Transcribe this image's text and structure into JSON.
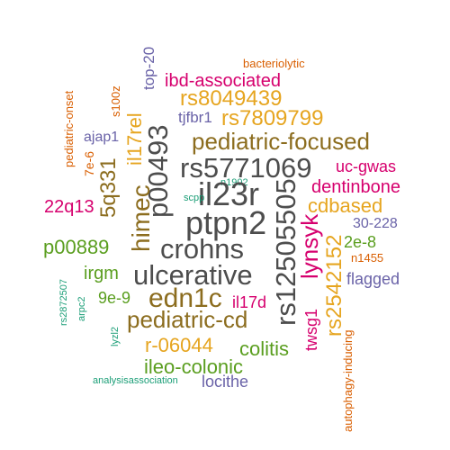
{
  "palette": {
    "gray": "#4d4d4d",
    "brown": "#8c6d1f",
    "gold": "#e6a520",
    "magenta": "#d6006e",
    "green": "#5a9e1f",
    "purple": "#6a63a8",
    "orange": "#d95f02",
    "teal": "#1b9e77"
  },
  "words": [
    {
      "text": "bacteriolytic",
      "color": "orange"
    },
    {
      "text": "top-20",
      "color": "purple"
    },
    {
      "text": "ibd-associated",
      "color": "magenta"
    },
    {
      "text": "pediatric-onset",
      "color": "orange"
    },
    {
      "text": "s100z",
      "color": "orange"
    },
    {
      "text": "rs8049439",
      "color": "gold"
    },
    {
      "text": "il17rel",
      "color": "gold"
    },
    {
      "text": "tjfbr1",
      "color": "purple"
    },
    {
      "text": "rs7809799",
      "color": "gold"
    },
    {
      "text": "ajap1",
      "color": "purple"
    },
    {
      "text": "p00493",
      "color": "gray"
    },
    {
      "text": "pediatric-focused",
      "color": "brown"
    },
    {
      "text": "7e-6",
      "color": "orange"
    },
    {
      "text": "5q331",
      "color": "brown"
    },
    {
      "text": "rs5771069",
      "color": "gray"
    },
    {
      "text": "uc-gwas",
      "color": "magenta"
    },
    {
      "text": "n1902",
      "color": "teal"
    },
    {
      "text": "dentinbone",
      "color": "magenta"
    },
    {
      "text": "il23r",
      "color": "gray"
    },
    {
      "text": "22q13",
      "color": "magenta"
    },
    {
      "text": "scpp",
      "color": "teal"
    },
    {
      "text": "himec",
      "color": "brown"
    },
    {
      "text": "rs12505505",
      "color": "gray"
    },
    {
      "text": "cdbased",
      "color": "gold"
    },
    {
      "text": "ptpn2",
      "color": "gray"
    },
    {
      "text": "30-228",
      "color": "purple"
    },
    {
      "text": "lynsyk",
      "color": "magenta"
    },
    {
      "text": "2e-8",
      "color": "green"
    },
    {
      "text": "p00889",
      "color": "green"
    },
    {
      "text": "crohns",
      "color": "gray"
    },
    {
      "text": "rs2542152",
      "color": "gold"
    },
    {
      "text": "n1455",
      "color": "orange"
    },
    {
      "text": "irgm",
      "color": "green"
    },
    {
      "text": "ulcerative",
      "color": "gray"
    },
    {
      "text": "rs2872507",
      "color": "teal"
    },
    {
      "text": "flagged",
      "color": "purple"
    },
    {
      "text": "arpc2",
      "color": "teal"
    },
    {
      "text": "9e-9",
      "color": "green"
    },
    {
      "text": "edn1c",
      "color": "brown"
    },
    {
      "text": "il17d",
      "color": "magenta"
    },
    {
      "text": "pediatric-cd",
      "color": "brown"
    },
    {
      "text": "twsg1",
      "color": "magenta"
    },
    {
      "text": "lyzl2",
      "color": "teal"
    },
    {
      "text": "autophagy-inducing",
      "color": "orange"
    },
    {
      "text": "r-06044",
      "color": "gold"
    },
    {
      "text": "colitis",
      "color": "green"
    },
    {
      "text": "ileo-colonic",
      "color": "green"
    },
    {
      "text": "analysisassociation",
      "color": "teal"
    },
    {
      "text": "locithe",
      "color": "purple"
    }
  ]
}
